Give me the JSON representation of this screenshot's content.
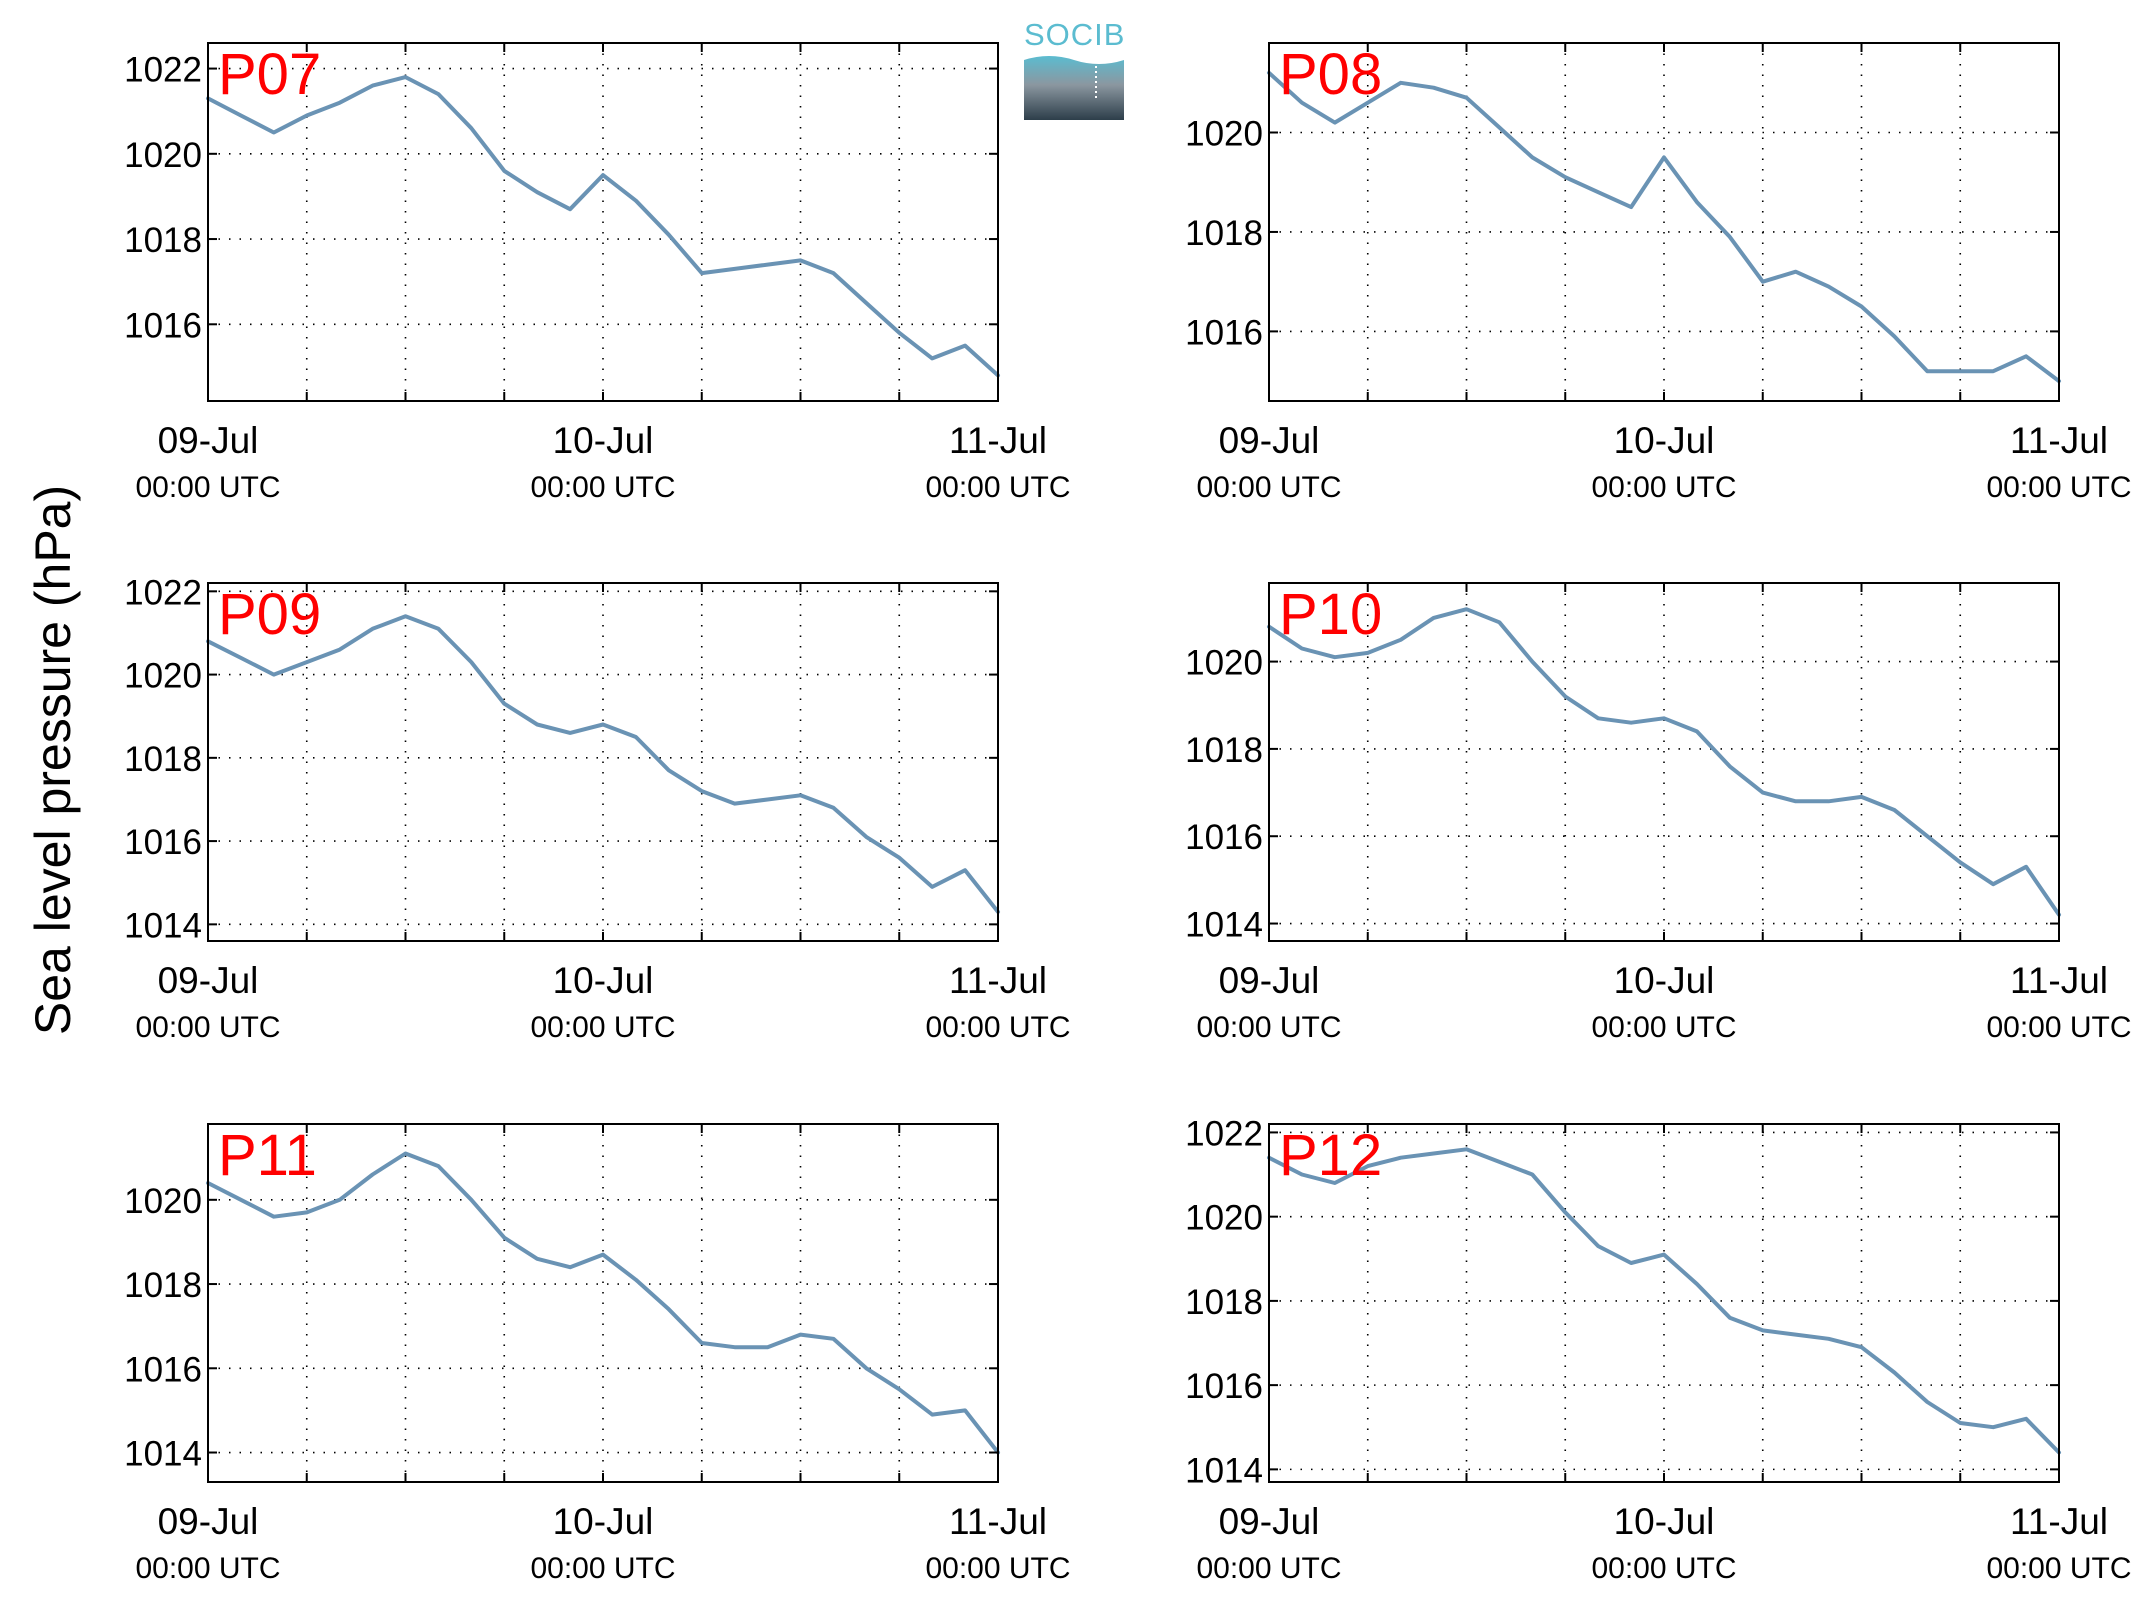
{
  "figure": {
    "ylabel": "Sea level pressure (hPa)",
    "tick_date_labels": [
      "09-Jul",
      "10-Jul",
      "11-Jul"
    ],
    "tick_time_label": "00:00 UTC",
    "line_color": "#6a93b4",
    "panel_label_color": "#ff0000",
    "grid": "dotted",
    "logo": {
      "text": "SOCIB",
      "colors": [
        "#5bbcd0",
        "#2d3e4a"
      ]
    }
  },
  "chart_data": [
    {
      "type": "line",
      "title": "P07",
      "xlim": [
        "2015-07-09T00:00",
        "2015-07-11T00:00"
      ],
      "ylim": [
        1014.2,
        1022.6
      ],
      "yticks": [
        1016,
        1018,
        1020,
        1022
      ],
      "x": [
        "2015-07-09T00:00",
        "2015-07-09T02:00",
        "2015-07-09T04:00",
        "2015-07-09T06:00",
        "2015-07-09T08:00",
        "2015-07-09T10:00",
        "2015-07-09T12:00",
        "2015-07-09T14:00",
        "2015-07-09T16:00",
        "2015-07-09T18:00",
        "2015-07-09T20:00",
        "2015-07-09T22:00",
        "2015-07-10T00:00",
        "2015-07-10T02:00",
        "2015-07-10T04:00",
        "2015-07-10T06:00",
        "2015-07-10T08:00",
        "2015-07-10T10:00",
        "2015-07-10T12:00",
        "2015-07-10T14:00",
        "2015-07-10T16:00",
        "2015-07-10T18:00",
        "2015-07-10T20:00",
        "2015-07-10T22:00",
        "2015-07-11T00:00"
      ],
      "values": [
        1021.3,
        1020.9,
        1020.5,
        1020.9,
        1021.2,
        1021.6,
        1021.8,
        1021.4,
        1020.6,
        1019.6,
        1019.1,
        1018.7,
        1019.5,
        1018.9,
        1018.1,
        1017.2,
        1017.3,
        1017.4,
        1017.5,
        1017.2,
        1016.5,
        1015.8,
        1015.2,
        1015.5,
        1014.8
      ]
    },
    {
      "type": "line",
      "title": "P08",
      "xlim": [
        "2015-07-09T00:00",
        "2015-07-11T00:00"
      ],
      "ylim": [
        1014.6,
        1021.8
      ],
      "yticks": [
        1016,
        1018,
        1020
      ],
      "x": [
        "2015-07-09T00:00",
        "2015-07-09T02:00",
        "2015-07-09T04:00",
        "2015-07-09T06:00",
        "2015-07-09T08:00",
        "2015-07-09T10:00",
        "2015-07-09T12:00",
        "2015-07-09T14:00",
        "2015-07-09T16:00",
        "2015-07-09T18:00",
        "2015-07-09T20:00",
        "2015-07-09T22:00",
        "2015-07-10T00:00",
        "2015-07-10T02:00",
        "2015-07-10T04:00",
        "2015-07-10T06:00",
        "2015-07-10T08:00",
        "2015-07-10T10:00",
        "2015-07-10T12:00",
        "2015-07-10T14:00",
        "2015-07-10T16:00",
        "2015-07-10T18:00",
        "2015-07-10T20:00",
        "2015-07-10T22:00",
        "2015-07-11T00:00"
      ],
      "values": [
        1021.2,
        1020.6,
        1020.2,
        1020.6,
        1021.0,
        1020.9,
        1020.7,
        1020.1,
        1019.5,
        1019.1,
        1018.8,
        1018.5,
        1019.5,
        1018.6,
        1017.9,
        1017.0,
        1017.2,
        1016.9,
        1016.5,
        1015.9,
        1015.2,
        1015.2,
        1015.2,
        1015.5,
        1015.0
      ]
    },
    {
      "type": "line",
      "title": "P09",
      "xlim": [
        "2015-07-09T00:00",
        "2015-07-11T00:00"
      ],
      "ylim": [
        1013.6,
        1022.2
      ],
      "yticks": [
        1014,
        1016,
        1018,
        1020,
        1022
      ],
      "x": [
        "2015-07-09T00:00",
        "2015-07-09T02:00",
        "2015-07-09T04:00",
        "2015-07-09T06:00",
        "2015-07-09T08:00",
        "2015-07-09T10:00",
        "2015-07-09T12:00",
        "2015-07-09T14:00",
        "2015-07-09T16:00",
        "2015-07-09T18:00",
        "2015-07-09T20:00",
        "2015-07-09T22:00",
        "2015-07-10T00:00",
        "2015-07-10T02:00",
        "2015-07-10T04:00",
        "2015-07-10T06:00",
        "2015-07-10T08:00",
        "2015-07-10T10:00",
        "2015-07-10T12:00",
        "2015-07-10T14:00",
        "2015-07-10T16:00",
        "2015-07-10T18:00",
        "2015-07-10T20:00",
        "2015-07-10T22:00",
        "2015-07-11T00:00"
      ],
      "values": [
        1020.8,
        1020.4,
        1020.0,
        1020.3,
        1020.6,
        1021.1,
        1021.4,
        1021.1,
        1020.3,
        1019.3,
        1018.8,
        1018.6,
        1018.8,
        1018.5,
        1017.7,
        1017.2,
        1016.9,
        1017.0,
        1017.1,
        1016.8,
        1016.1,
        1015.6,
        1014.9,
        1015.3,
        1014.3
      ]
    },
    {
      "type": "line",
      "title": "P10",
      "xlim": [
        "2015-07-09T00:00",
        "2015-07-11T00:00"
      ],
      "ylim": [
        1013.6,
        1021.8
      ],
      "yticks": [
        1014,
        1016,
        1018,
        1020
      ],
      "x": [
        "2015-07-09T00:00",
        "2015-07-09T02:00",
        "2015-07-09T04:00",
        "2015-07-09T06:00",
        "2015-07-09T08:00",
        "2015-07-09T10:00",
        "2015-07-09T12:00",
        "2015-07-09T14:00",
        "2015-07-09T16:00",
        "2015-07-09T18:00",
        "2015-07-09T20:00",
        "2015-07-09T22:00",
        "2015-07-10T00:00",
        "2015-07-10T02:00",
        "2015-07-10T04:00",
        "2015-07-10T06:00",
        "2015-07-10T08:00",
        "2015-07-10T10:00",
        "2015-07-10T12:00",
        "2015-07-10T14:00",
        "2015-07-10T16:00",
        "2015-07-10T18:00",
        "2015-07-10T20:00",
        "2015-07-10T22:00",
        "2015-07-11T00:00"
      ],
      "values": [
        1020.8,
        1020.3,
        1020.1,
        1020.2,
        1020.5,
        1021.0,
        1021.2,
        1020.9,
        1020.0,
        1019.2,
        1018.7,
        1018.6,
        1018.7,
        1018.4,
        1017.6,
        1017.0,
        1016.8,
        1016.8,
        1016.9,
        1016.6,
        1016.0,
        1015.4,
        1014.9,
        1015.3,
        1014.2
      ]
    },
    {
      "type": "line",
      "title": "P11",
      "xlim": [
        "2015-07-09T00:00",
        "2015-07-11T00:00"
      ],
      "ylim": [
        1013.3,
        1021.8
      ],
      "yticks": [
        1014,
        1016,
        1018,
        1020
      ],
      "x": [
        "2015-07-09T00:00",
        "2015-07-09T02:00",
        "2015-07-09T04:00",
        "2015-07-09T06:00",
        "2015-07-09T08:00",
        "2015-07-09T10:00",
        "2015-07-09T12:00",
        "2015-07-09T14:00",
        "2015-07-09T16:00",
        "2015-07-09T18:00",
        "2015-07-09T20:00",
        "2015-07-09T22:00",
        "2015-07-10T00:00",
        "2015-07-10T02:00",
        "2015-07-10T04:00",
        "2015-07-10T06:00",
        "2015-07-10T08:00",
        "2015-07-10T10:00",
        "2015-07-10T12:00",
        "2015-07-10T14:00",
        "2015-07-10T16:00",
        "2015-07-10T18:00",
        "2015-07-10T20:00",
        "2015-07-10T22:00",
        "2015-07-11T00:00"
      ],
      "values": [
        1020.4,
        1020.0,
        1019.6,
        1019.7,
        1020.0,
        1020.6,
        1021.1,
        1020.8,
        1020.0,
        1019.1,
        1018.6,
        1018.4,
        1018.7,
        1018.1,
        1017.4,
        1016.6,
        1016.5,
        1016.5,
        1016.8,
        1016.7,
        1016.0,
        1015.5,
        1014.9,
        1015.0,
        1014.0
      ]
    },
    {
      "type": "line",
      "title": "P12",
      "xlim": [
        "2015-07-09T00:00",
        "2015-07-11T00:00"
      ],
      "ylim": [
        1013.7,
        1022.2
      ],
      "yticks": [
        1014,
        1016,
        1018,
        1020,
        1022
      ],
      "x": [
        "2015-07-09T00:00",
        "2015-07-09T02:00",
        "2015-07-09T04:00",
        "2015-07-09T06:00",
        "2015-07-09T08:00",
        "2015-07-09T10:00",
        "2015-07-09T12:00",
        "2015-07-09T14:00",
        "2015-07-09T16:00",
        "2015-07-09T18:00",
        "2015-07-09T20:00",
        "2015-07-09T22:00",
        "2015-07-10T00:00",
        "2015-07-10T02:00",
        "2015-07-10T04:00",
        "2015-07-10T06:00",
        "2015-07-10T08:00",
        "2015-07-10T10:00",
        "2015-07-10T12:00",
        "2015-07-10T14:00",
        "2015-07-10T16:00",
        "2015-07-10T18:00",
        "2015-07-10T20:00",
        "2015-07-10T22:00",
        "2015-07-11T00:00"
      ],
      "values": [
        1021.4,
        1021.0,
        1020.8,
        1021.2,
        1021.4,
        1021.5,
        1021.6,
        1021.3,
        1021.0,
        1020.1,
        1019.3,
        1018.9,
        1019.1,
        1018.4,
        1017.6,
        1017.3,
        1017.2,
        1017.1,
        1016.9,
        1016.3,
        1015.6,
        1015.1,
        1015.0,
        1015.2,
        1014.4
      ]
    }
  ]
}
